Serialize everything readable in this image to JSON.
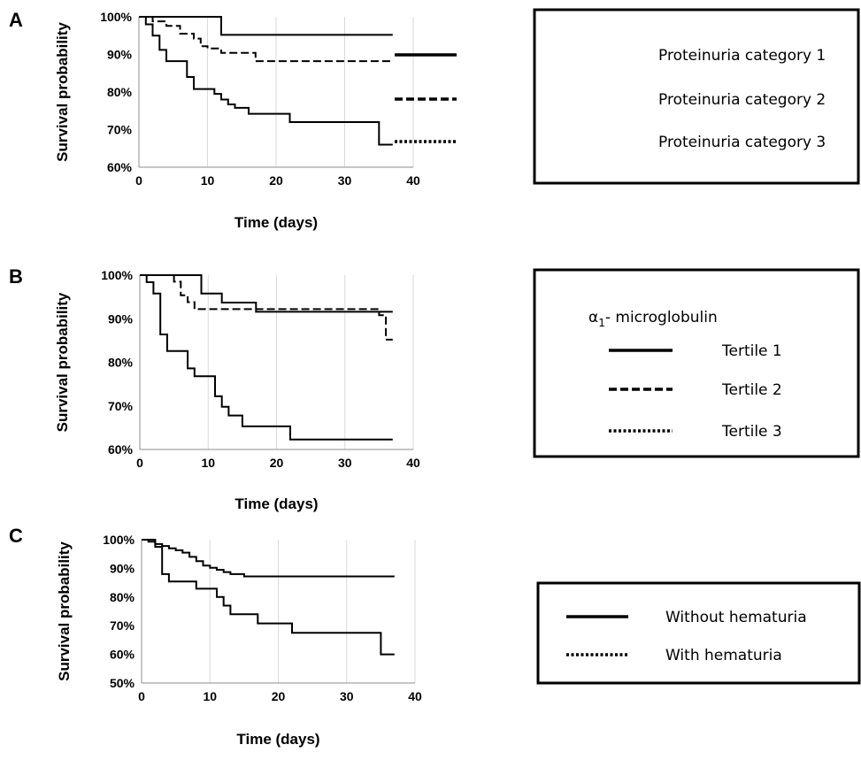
{
  "chart_data": [
    {
      "panel": "A",
      "type": "line",
      "step": true,
      "xlabel": "Time (days)",
      "ylabel": "Survival probability",
      "xlim": [
        0,
        40
      ],
      "ylim": [
        60,
        100
      ],
      "xticks": [
        "0",
        "10",
        "20",
        "30",
        "40"
      ],
      "yticks": [
        "60%",
        "70%",
        "80%",
        "90%",
        "100%"
      ],
      "grid": "vertical",
      "legend": {
        "placement": "right",
        "title": "",
        "entries": [
          {
            "label": "Proteinuria category 1",
            "style": "solid"
          },
          {
            "label": "Proteinuria category 2",
            "style": "dashed"
          },
          {
            "label": "Proteinuria category 3",
            "style": "dotted"
          }
        ]
      },
      "series": [
        {
          "style": "solid",
          "points": [
            [
              0,
              100
            ],
            [
              12,
              100
            ],
            [
              12,
              95.2
            ],
            [
              37,
              95.2
            ]
          ]
        },
        {
          "style": "dashed",
          "points": [
            [
              0,
              100
            ],
            [
              2,
              100
            ],
            [
              2,
              98.8
            ],
            [
              4,
              98.8
            ],
            [
              4,
              97.6
            ],
            [
              6,
              97.6
            ],
            [
              6,
              95.5
            ],
            [
              8,
              95.5
            ],
            [
              8,
              94.2
            ],
            [
              9,
              94.2
            ],
            [
              9,
              92.2
            ],
            [
              10,
              92.2
            ],
            [
              10,
              91.6
            ],
            [
              12,
              91.6
            ],
            [
              12,
              90.4
            ],
            [
              17,
              90.4
            ],
            [
              17,
              88.2
            ],
            [
              37,
              88.2
            ]
          ]
        },
        {
          "style": "solid",
          "points": [
            [
              0,
              100
            ],
            [
              1,
              100
            ],
            [
              1,
              98
            ],
            [
              2,
              98
            ],
            [
              2,
              95
            ],
            [
              3,
              95
            ],
            [
              3,
              91.2
            ],
            [
              4,
              91.2
            ],
            [
              4,
              88.2
            ],
            [
              7,
              88.2
            ],
            [
              7,
              84
            ],
            [
              8,
              84
            ],
            [
              8,
              80.8
            ],
            [
              11,
              80.8
            ],
            [
              11,
              79.5
            ],
            [
              12,
              79.5
            ],
            [
              12,
              78
            ],
            [
              13,
              78
            ],
            [
              13,
              76.7
            ],
            [
              14,
              76.7
            ],
            [
              14,
              75.8
            ],
            [
              16,
              75.8
            ],
            [
              16,
              74.2
            ],
            [
              22,
              74.2
            ],
            [
              22,
              72
            ],
            [
              35,
              72
            ],
            [
              35,
              66
            ],
            [
              37,
              66
            ]
          ]
        }
      ]
    },
    {
      "panel": "B",
      "type": "line",
      "step": true,
      "xlabel": "Time (days)",
      "ylabel": "Survival probability",
      "xlim": [
        0,
        40
      ],
      "ylim": [
        60,
        100
      ],
      "xticks": [
        "0",
        "10",
        "20",
        "30",
        "40"
      ],
      "yticks": [
        "60%",
        "70%",
        "80%",
        "90%",
        "100%"
      ],
      "grid": "vertical",
      "legend": {
        "placement": "right",
        "title_prefix": "α",
        "title_sub": "1",
        "title_suffix": "- microglobulin",
        "entries": [
          {
            "label": "Tertile 1",
            "style": "solid"
          },
          {
            "label": "Tertile 2",
            "style": "dashed"
          },
          {
            "label": "Tertile 3",
            "style": "dotted"
          }
        ]
      },
      "series": [
        {
          "style": "solid",
          "points": [
            [
              0,
              100
            ],
            [
              9,
              100
            ],
            [
              9,
              95.8
            ],
            [
              12,
              95.8
            ],
            [
              12,
              93.7
            ],
            [
              17,
              93.7
            ],
            [
              17,
              91.6
            ],
            [
              37,
              91.6
            ]
          ]
        },
        {
          "style": "dashed",
          "points": [
            [
              0,
              100
            ],
            [
              5,
              100
            ],
            [
              5,
              98.5
            ],
            [
              6,
              98.5
            ],
            [
              6,
              95.4
            ],
            [
              7,
              95.4
            ],
            [
              7,
              93.8
            ],
            [
              8,
              93.8
            ],
            [
              8,
              92.2
            ],
            [
              35,
              92.2
            ],
            [
              35,
              90.8
            ],
            [
              36,
              90.8
            ],
            [
              36,
              85.2
            ],
            [
              37,
              85.2
            ]
          ]
        },
        {
          "style": "solid",
          "points": [
            [
              0,
              100
            ],
            [
              1,
              100
            ],
            [
              1,
              98.4
            ],
            [
              2,
              98.4
            ],
            [
              2,
              95.8
            ],
            [
              3,
              95.8
            ],
            [
              3,
              86.4
            ],
            [
              4,
              86.4
            ],
            [
              4,
              82.6
            ],
            [
              7,
              82.6
            ],
            [
              7,
              78.6
            ],
            [
              8,
              78.6
            ],
            [
              8,
              76.8
            ],
            [
              11,
              76.8
            ],
            [
              11,
              72.2
            ],
            [
              12,
              72.2
            ],
            [
              12,
              69.8
            ],
            [
              13,
              69.8
            ],
            [
              13,
              67.8
            ],
            [
              15,
              67.8
            ],
            [
              15,
              65.3
            ],
            [
              22,
              65.3
            ],
            [
              22,
              62.3
            ],
            [
              37,
              62.3
            ]
          ]
        }
      ]
    },
    {
      "panel": "C",
      "type": "line",
      "step": true,
      "xlabel": "Time (days)",
      "ylabel": "Survival probability",
      "xlim": [
        0,
        40
      ],
      "ylim": [
        50,
        100
      ],
      "xticks": [
        "0",
        "10",
        "20",
        "30",
        "40"
      ],
      "yticks": [
        "50%",
        "60%",
        "70%",
        "80%",
        "90%",
        "100%"
      ],
      "grid": "vertical",
      "legend": {
        "placement": "right",
        "title": "",
        "entries": [
          {
            "label": "Without hematuria",
            "style": "solid"
          },
          {
            "label": "With hematuria",
            "style": "dotted"
          }
        ]
      },
      "series": [
        {
          "style": "solid",
          "points": [
            [
              0,
              100
            ],
            [
              1,
              100
            ],
            [
              1,
              99.3
            ],
            [
              2,
              99.3
            ],
            [
              2,
              98.5
            ],
            [
              3,
              98.5
            ],
            [
              3,
              97.8
            ],
            [
              4,
              97.8
            ],
            [
              4,
              97
            ],
            [
              5,
              97
            ],
            [
              5,
              96.3
            ],
            [
              6,
              96.3
            ],
            [
              6,
              95.5
            ],
            [
              7,
              95.5
            ],
            [
              7,
              94
            ],
            [
              8,
              94
            ],
            [
              8,
              92.5
            ],
            [
              9,
              92.5
            ],
            [
              9,
              91
            ],
            [
              10,
              91
            ],
            [
              10,
              90.2
            ],
            [
              11,
              90.2
            ],
            [
              11,
              89.5
            ],
            [
              12,
              89.5
            ],
            [
              12,
              88.7
            ],
            [
              13,
              88.7
            ],
            [
              13,
              88
            ],
            [
              15,
              88
            ],
            [
              15,
              87.2
            ],
            [
              37,
              87.2
            ]
          ]
        },
        {
          "style": "solid",
          "points": [
            [
              0,
              100
            ],
            [
              2,
              100
            ],
            [
              2,
              97.5
            ],
            [
              3,
              97.5
            ],
            [
              3,
              88
            ],
            [
              4,
              88
            ],
            [
              4,
              85.4
            ],
            [
              8,
              85.4
            ],
            [
              8,
              82.9
            ],
            [
              11,
              82.9
            ],
            [
              11,
              80
            ],
            [
              12,
              80
            ],
            [
              12,
              77
            ],
            [
              13,
              77
            ],
            [
              13,
              74
            ],
            [
              17,
              74
            ],
            [
              17,
              70.8
            ],
            [
              22,
              70.8
            ],
            [
              22,
              67.5
            ],
            [
              35,
              67.5
            ],
            [
              35,
              60
            ],
            [
              37,
              60
            ]
          ]
        }
      ]
    }
  ]
}
